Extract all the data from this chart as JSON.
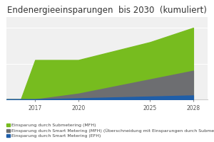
{
  "title": "Endenergieeinsparungen  bis 2030  (kumuliert)",
  "title_fontsize": 8.5,
  "years": [
    2015,
    2016,
    2017,
    2020,
    2025,
    2028
  ],
  "sub_mfh": [
    0,
    0,
    55,
    55,
    80,
    100
  ],
  "smart_ov": [
    0,
    0,
    0,
    8,
    28,
    40
  ],
  "smart_efh": [
    0,
    0,
    0,
    1.5,
    4,
    5.5
  ],
  "color_sub_mfh": "#77bc1f",
  "color_smart_ov": "#6d6e71",
  "color_smart_efh": "#1f5ea8",
  "xticks": [
    2017,
    2020,
    2025,
    2028
  ],
  "legend_labels": [
    "Einsparung durch Submetering (MFH)",
    "Einsparung durch Smart Metering (MFH) (Überschneidung mit Einsparungen durch Submetering (M...",
    "Einsparung durch Smart Metering (EFH)"
  ],
  "legend_fontsize": 4.5,
  "background_color": "#ffffff",
  "plot_bg": "#f0f0f0",
  "xlim": [
    2015,
    2029
  ],
  "ylim": [
    0,
    115
  ]
}
